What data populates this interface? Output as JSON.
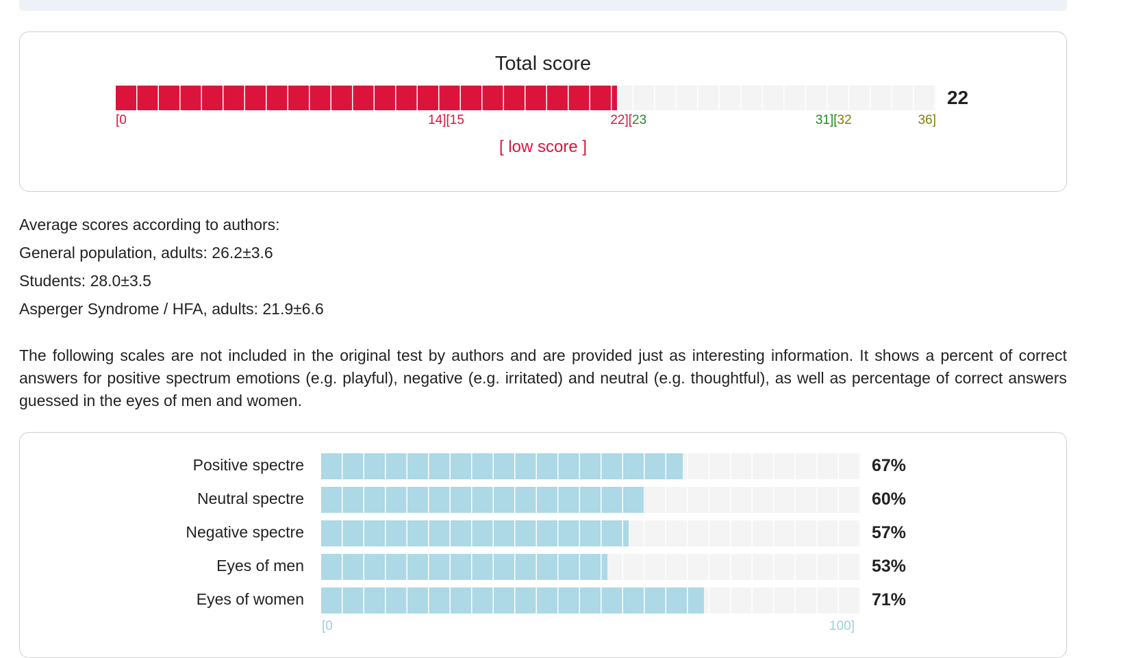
{
  "total_card": {
    "title": "Total score",
    "score": 22,
    "max": 36,
    "value_label": "22",
    "verdict": "[ low score ]",
    "ticks": [
      {
        "value": 0,
        "label": "[0",
        "color": "#dc143c"
      },
      {
        "value": 14.5,
        "label": "14][15",
        "color": "#dc143c"
      },
      {
        "value": 22.5,
        "label": "22][",
        "color": "#dc143c",
        "after": "23",
        "after_color": "#228b22"
      },
      {
        "value": 31.5,
        "label": "31][",
        "color": "#228b22",
        "after": "32",
        "after_color": "#808000"
      },
      {
        "value": 36,
        "label": "36]",
        "color": "#808000"
      }
    ],
    "fill_color": "#dc143c"
  },
  "averages": {
    "heading": "Average scores according to authors:",
    "lines": [
      "General population, adults: 26.2±3.6",
      "Students: 28.0±3.5",
      "Asperger Syndrome / HFA, adults: 21.9±6.6"
    ]
  },
  "note": "The following scales are not included in the original test by authors and are provided just as interesting information. It shows a percent of correct answers for positive spectrum emotions (e.g. playful), negative (e.g. irritated) and neutral (e.g. thoughtful), as well as percentage of correct answers guessed in the eyes of men and women.",
  "scales": {
    "fill_color": "#add8e6",
    "min_label": "[0",
    "max_label": "100]",
    "rows": [
      {
        "label": "Positive spectre",
        "value": 67,
        "pct_label": "67%"
      },
      {
        "label": "Neutral spectre",
        "value": 60,
        "pct_label": "60%"
      },
      {
        "label": "Negative spectre",
        "value": 57,
        "pct_label": "57%"
      },
      {
        "label": "Eyes of men",
        "value": 53,
        "pct_label": "53%"
      },
      {
        "label": "Eyes of women",
        "value": 71,
        "pct_label": "71%"
      }
    ]
  }
}
